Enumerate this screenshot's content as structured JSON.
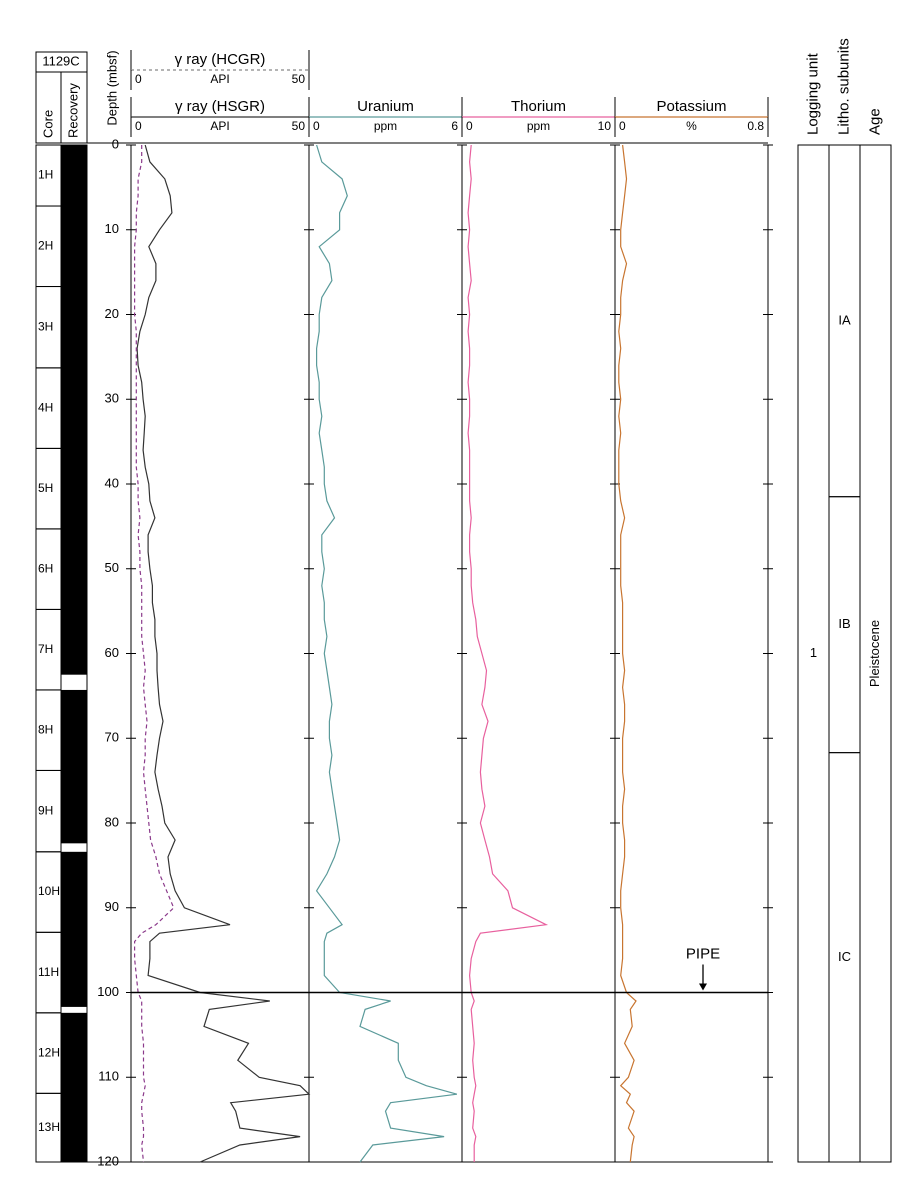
{
  "chart_data": {
    "type": "log",
    "hole": "1129C",
    "core_label": "Core",
    "recovery_label": "Recovery",
    "depth_label": "Depth (mbsf)",
    "ylim": [
      0,
      120
    ],
    "yticks": [
      0,
      10,
      20,
      30,
      40,
      50,
      60,
      70,
      80,
      90,
      100,
      110,
      120
    ],
    "cores": [
      {
        "name": "1H",
        "top": 0,
        "bottom": 7.2
      },
      {
        "name": "2H",
        "top": 7.2,
        "bottom": 16.7
      },
      {
        "name": "3H",
        "top": 16.7,
        "bottom": 26.3
      },
      {
        "name": "4H",
        "top": 26.3,
        "bottom": 35.8
      },
      {
        "name": "5H",
        "top": 35.8,
        "bottom": 45.3
      },
      {
        "name": "6H",
        "top": 45.3,
        "bottom": 54.8
      },
      {
        "name": "7H",
        "top": 54.8,
        "bottom": 64.3
      },
      {
        "name": "8H",
        "top": 64.3,
        "bottom": 73.8
      },
      {
        "name": "9H",
        "top": 73.8,
        "bottom": 83.4
      },
      {
        "name": "10H",
        "top": 83.4,
        "bottom": 92.9
      },
      {
        "name": "11H",
        "top": 92.9,
        "bottom": 102.4
      },
      {
        "name": "12H",
        "top": 102.4,
        "bottom": 111.9
      },
      {
        "name": "13H",
        "top": 111.9,
        "bottom": 120
      }
    ],
    "recovery": [
      {
        "top": 0,
        "bottom": 62.5
      },
      {
        "top": 64.3,
        "bottom": 82.4
      },
      {
        "top": 83.4,
        "bottom": 101.7
      },
      {
        "top": 102.4,
        "bottom": 120
      }
    ],
    "depth": [
      0,
      2,
      4,
      6,
      8,
      10,
      12,
      14,
      16,
      18,
      20,
      22,
      24,
      26,
      28,
      30,
      32,
      34,
      36,
      38,
      40,
      42,
      44,
      46,
      48,
      50,
      52,
      54,
      56,
      58,
      60,
      62,
      64,
      66,
      68,
      70,
      72,
      74,
      76,
      78,
      80,
      82,
      84,
      86,
      88,
      90,
      92,
      93,
      94,
      96,
      98,
      100,
      101,
      102,
      104,
      106,
      108,
      110,
      111,
      112,
      113,
      114,
      116,
      117,
      118,
      120
    ],
    "tracks": [
      {
        "series": [
          {
            "name": "γ ray (HSGR)",
            "unit": "API",
            "xlim": [
              0,
              50
            ],
            "xticks": [
              0,
              50
            ],
            "color": "#333333",
            "dashed": false,
            "values": [
              4,
              5.3,
              9.5,
              11,
              11.5,
              8,
              5,
              7,
              7,
              5,
              4,
              2.5,
              1.7,
              2,
              3,
              3.4,
              4,
              3.7,
              3.4,
              4,
              5,
              5.3,
              6.7,
              4.8,
              4.8,
              5.3,
              6,
              6,
              6.7,
              6.7,
              7.3,
              7.3,
              7.6,
              8,
              9,
              8,
              7.3,
              6.7,
              7.6,
              8.7,
              9.5,
              12.4,
              10.4,
              11,
              12.4,
              15,
              27.8,
              8,
              5.3,
              5.3,
              4.8,
              19.4,
              39,
              22,
              20.5,
              33,
              30,
              36,
              47.5,
              50,
              28,
              29.4,
              30.6,
              47.5,
              30.6,
              19.4
            ]
          },
          {
            "name": "γ ray (HCGR)",
            "unit": "API",
            "xlim": [
              0,
              50
            ],
            "xticks": [
              0,
              50
            ],
            "color": "#8b3a8b",
            "dashed": true,
            "values": [
              3,
              3,
              2,
              2,
              1.5,
              1.5,
              1,
              1,
              1,
              1,
              1,
              1.5,
              1.5,
              1.5,
              1.5,
              1.5,
              1.5,
              1.5,
              1.5,
              1.5,
              2,
              2,
              2.5,
              2,
              2.5,
              2.5,
              3,
              3,
              3,
              3,
              3.5,
              4,
              3.5,
              4,
              4.5,
              4,
              4,
              3.5,
              4,
              4.5,
              5,
              5.5,
              7,
              8,
              10,
              12,
              7,
              3,
              1,
              1,
              1.5,
              2,
              3,
              3,
              3,
              3.5,
              3.5,
              3.5,
              4,
              3.5,
              3,
              3,
              3.5,
              3.5,
              3,
              3.5
            ]
          }
        ]
      },
      {
        "series": [
          {
            "name": "Uranium",
            "unit": "ppm",
            "xlim": [
              0,
              6
            ],
            "xticks": [
              0,
              6
            ],
            "color": "#5a9a9a",
            "dashed": false,
            "values": [
              0.3,
              0.5,
              1.3,
              1.5,
              1.2,
              1.2,
              0.4,
              0.8,
              0.9,
              0.5,
              0.4,
              0.4,
              0.3,
              0.3,
              0.4,
              0.4,
              0.5,
              0.4,
              0.5,
              0.6,
              0.6,
              0.7,
              1,
              0.5,
              0.5,
              0.6,
              0.5,
              0.6,
              0.6,
              0.7,
              0.6,
              0.7,
              0.8,
              0.9,
              0.8,
              0.8,
              0.9,
              0.8,
              0.9,
              1,
              1.1,
              1.2,
              1,
              0.7,
              0.3,
              0.8,
              1.3,
              0.7,
              0.6,
              0.6,
              0.6,
              1.2,
              3.2,
              2.2,
              2,
              3.5,
              3.5,
              3.8,
              4.6,
              5.8,
              3.2,
              3,
              3.2,
              5.3,
              2.5,
              2
            ]
          }
        ]
      },
      {
        "series": [
          {
            "name": "Thorium",
            "unit": "ppm",
            "xlim": [
              0,
              10
            ],
            "xticks": [
              0,
              10
            ],
            "color": "#e8609e",
            "dashed": false,
            "values": [
              0.6,
              0.5,
              0.6,
              0.5,
              0.4,
              0.5,
              0.4,
              0.5,
              0.6,
              0.4,
              0.5,
              0.4,
              0.5,
              0.5,
              0.4,
              0.5,
              0.5,
              0.4,
              0.5,
              0.5,
              0.5,
              0.5,
              0.6,
              0.5,
              0.5,
              0.6,
              0.6,
              0.7,
              0.9,
              1,
              1.3,
              1.6,
              1.5,
              1.3,
              1.7,
              1.4,
              1.3,
              1.2,
              1.3,
              1.5,
              1.2,
              1.5,
              1.8,
              2,
              3,
              3.3,
              5.5,
              1.2,
              0.9,
              0.6,
              0.5,
              0.6,
              0.8,
              0.6,
              0.7,
              0.8,
              0.7,
              0.8,
              0.9,
              0.8,
              0.7,
              0.8,
              0.7,
              0.9,
              0.8,
              0.8
            ]
          }
        ]
      },
      {
        "series": [
          {
            "name": "Potassium",
            "unit": "%",
            "xlim": [
              0,
              0.8
            ],
            "xticks": [
              0,
              0.8
            ],
            "color": "#c87530",
            "dashed": false,
            "values": [
              0.04,
              0.05,
              0.06,
              0.05,
              0.04,
              0.03,
              0.03,
              0.06,
              0.04,
              0.03,
              0.03,
              0.02,
              0.03,
              0.02,
              0.02,
              0.03,
              0.02,
              0.03,
              0.02,
              0.02,
              0.02,
              0.03,
              0.05,
              0.03,
              0.03,
              0.03,
              0.03,
              0.04,
              0.04,
              0.04,
              0.04,
              0.05,
              0.04,
              0.05,
              0.05,
              0.04,
              0.04,
              0.04,
              0.05,
              0.04,
              0.04,
              0.05,
              0.05,
              0.04,
              0.03,
              0.03,
              0.04,
              0.04,
              0.04,
              0.04,
              0.03,
              0.06,
              0.11,
              0.08,
              0.09,
              0.05,
              0.1,
              0.07,
              0.03,
              0.08,
              0.06,
              0.1,
              0.07,
              0.1,
              0.09,
              0.08
            ]
          }
        ]
      }
    ],
    "pipe": {
      "label": "PIPE",
      "depth": 100
    },
    "panels": [
      {
        "title": "Logging unit",
        "intervals": [
          {
            "label": "1",
            "top": 0,
            "bottom": 120
          }
        ]
      },
      {
        "title": "Litho. subunits",
        "intervals": [
          {
            "label": "IA",
            "top": 0,
            "bottom": 41.5
          },
          {
            "label": "IB",
            "top": 41.5,
            "bottom": 71.7
          },
          {
            "label": "IC",
            "top": 71.7,
            "bottom": 120
          }
        ]
      },
      {
        "title": "Age",
        "vertical": true,
        "intervals": [
          {
            "label": "Pleistocene",
            "top": 0,
            "bottom": 120
          }
        ]
      }
    ]
  }
}
